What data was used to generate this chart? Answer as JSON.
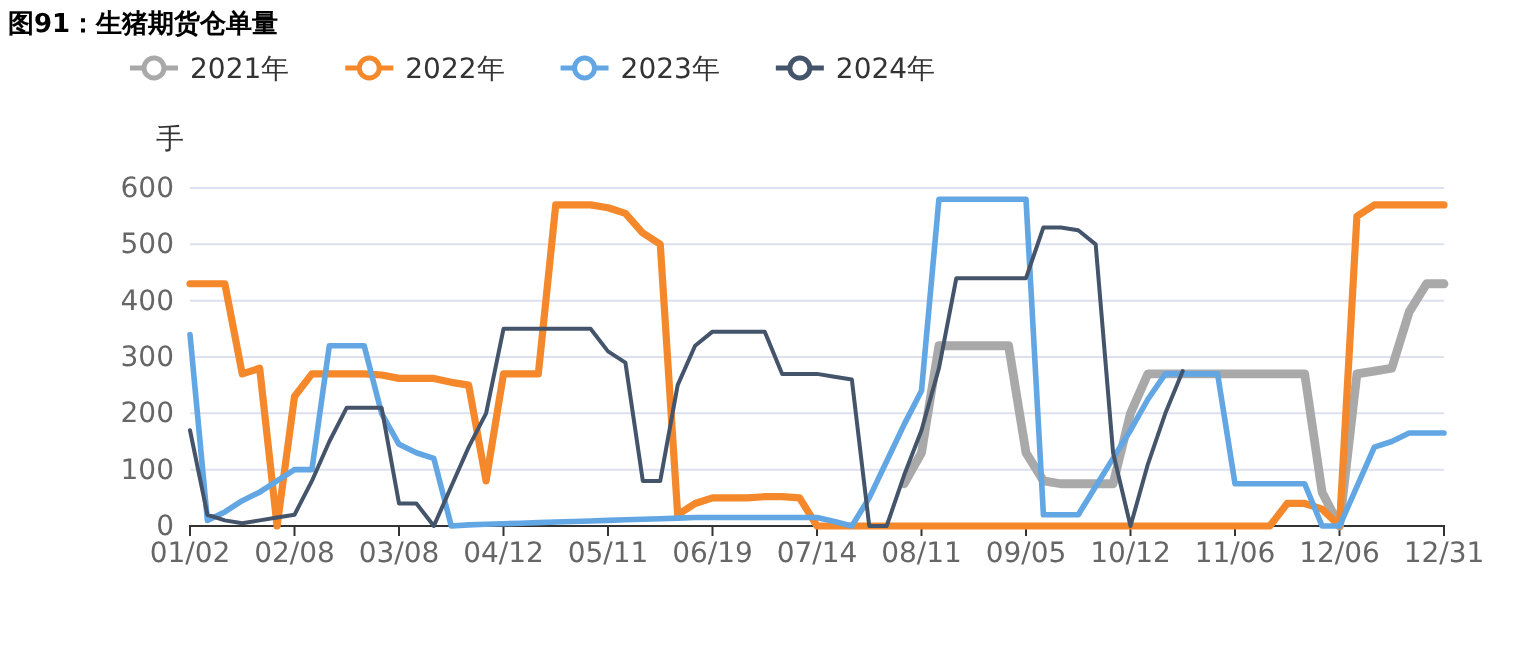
{
  "chart_data": {
    "type": "line",
    "title": "图91：生猪期货仓单量",
    "ylabel": "手",
    "categories": [
      "01/02",
      null,
      null,
      null,
      null,
      null,
      "02/08",
      null,
      null,
      null,
      null,
      null,
      "03/08",
      null,
      null,
      null,
      null,
      null,
      "04/12",
      null,
      null,
      null,
      null,
      null,
      "05/11",
      null,
      null,
      null,
      null,
      null,
      "06/19",
      null,
      null,
      null,
      null,
      null,
      "07/14",
      null,
      null,
      null,
      null,
      null,
      "08/11",
      null,
      null,
      null,
      null,
      null,
      "09/05",
      null,
      null,
      null,
      null,
      null,
      "10/12",
      null,
      null,
      null,
      null,
      null,
      "11/06",
      null,
      null,
      null,
      null,
      null,
      "12/06",
      null,
      null,
      null,
      null,
      null,
      "12/31"
    ],
    "series": [
      {
        "name": "2021年",
        "color": "#a9a9a9",
        "values": [
          null,
          null,
          null,
          null,
          null,
          null,
          null,
          null,
          null,
          null,
          null,
          null,
          null,
          null,
          null,
          null,
          null,
          null,
          null,
          null,
          null,
          null,
          null,
          null,
          null,
          null,
          null,
          null,
          null,
          null,
          null,
          null,
          null,
          null,
          null,
          null,
          null,
          null,
          null,
          null,
          null,
          75,
          130,
          320,
          320,
          320,
          320,
          320,
          130,
          80,
          75,
          75,
          75,
          75,
          200,
          270,
          270,
          270,
          270,
          270,
          270,
          270,
          270,
          270,
          270,
          60,
          0,
          270,
          275,
          280,
          380,
          430,
          430
        ]
      },
      {
        "name": "2022年",
        "color": "#f5882a",
        "values": [
          430,
          430,
          430,
          270,
          280,
          0,
          230,
          270,
          270,
          270,
          270,
          268,
          262,
          262,
          262,
          255,
          250,
          80,
          270,
          270,
          270,
          570,
          570,
          570,
          565,
          555,
          520,
          500,
          20,
          40,
          50,
          50,
          50,
          52,
          52,
          50,
          0,
          0,
          0,
          0,
          0,
          0,
          0,
          0,
          0,
          0,
          0,
          0,
          0,
          0,
          0,
          0,
          0,
          0,
          0,
          0,
          0,
          0,
          0,
          0,
          0,
          0,
          0,
          40,
          40,
          30,
          0,
          550,
          570,
          570,
          570,
          570,
          570
        ]
      },
      {
        "name": "2023年",
        "color": "#62a6e3",
        "values": [
          340,
          10,
          25,
          45,
          60,
          80,
          100,
          100,
          320,
          320,
          320,
          200,
          145,
          130,
          120,
          0,
          2,
          3,
          4,
          5,
          6,
          7,
          8,
          9,
          10,
          11,
          12,
          13,
          14,
          15,
          15,
          15,
          15,
          15,
          15,
          15,
          15,
          8,
          0,
          50,
          115,
          180,
          240,
          580,
          580,
          580,
          580,
          580,
          580,
          20,
          20,
          20,
          70,
          120,
          170,
          225,
          270,
          270,
          270,
          270,
          75,
          75,
          75,
          75,
          75,
          0,
          0,
          70,
          140,
          150,
          165,
          165,
          165
        ]
      },
      {
        "name": "2024年",
        "color": "#44546a",
        "values": [
          170,
          20,
          10,
          5,
          10,
          15,
          20,
          80,
          150,
          210,
          210,
          210,
          40,
          40,
          0,
          70,
          140,
          200,
          350,
          350,
          350,
          350,
          350,
          350,
          310,
          290,
          80,
          80,
          250,
          320,
          345,
          345,
          345,
          345,
          270,
          270,
          270,
          265,
          260,
          0,
          0,
          90,
          170,
          280,
          440,
          440,
          440,
          440,
          440,
          530,
          530,
          525,
          500,
          130,
          0,
          110,
          200,
          275,
          null,
          null,
          null,
          null,
          null,
          null,
          null,
          null,
          null,
          null,
          null,
          null,
          null,
          null,
          null
        ]
      }
    ],
    "ylim": [
      0,
      600
    ],
    "yticks": [
      0,
      100,
      200,
      300,
      400,
      500,
      600
    ],
    "grid": "y",
    "legend": "top"
  }
}
